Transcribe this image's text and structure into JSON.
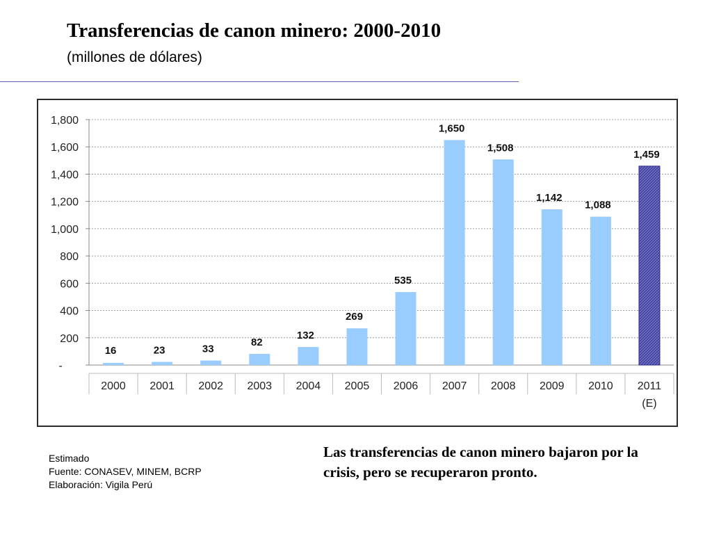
{
  "header": {
    "title": "Transferencias de canon minero: 2000-2010",
    "subtitle": "(millones de dólares)"
  },
  "chart_data": {
    "type": "bar",
    "categories": [
      "2000",
      "2001",
      "2002",
      "2003",
      "2004",
      "2005",
      "2006",
      "2007",
      "2008",
      "2009",
      "2010",
      "2011"
    ],
    "category_sublabels": {
      "2011": "(E)"
    },
    "values": [
      16,
      23,
      33,
      82,
      132,
      269,
      535,
      1650,
      1508,
      1142,
      1088,
      1459
    ],
    "data_labels": [
      "16",
      "23",
      "33",
      "82",
      "132",
      "269",
      "535",
      "1,650",
      "1,508",
      "1,142",
      "1,088",
      "1,459"
    ],
    "estimated": [
      false,
      false,
      false,
      false,
      false,
      false,
      false,
      false,
      false,
      false,
      false,
      true
    ],
    "ylim": [
      0,
      1800
    ],
    "yticks": [
      0,
      200,
      400,
      600,
      800,
      1000,
      1200,
      1400,
      1600,
      1800
    ],
    "ytick_labels": [
      "-",
      "200",
      "400",
      "600",
      "800",
      "1,000",
      "1,200",
      "1,400",
      "1,600",
      "1,800"
    ],
    "grid": true,
    "colors": {
      "actual": "#99ccff",
      "estimated": "#6b6bc4",
      "estimated_edge": "#2e2e8a",
      "grid": "#9a9a9a"
    }
  },
  "notes": {
    "line1": "Estimado",
    "line2": "Fuente: CONASEV, MINEM, BCRP",
    "line3": "Elaboración: Vigila Perú"
  },
  "commentary": "Las transferencias de canon minero bajaron por la crisis, pero se recuperaron pronto."
}
